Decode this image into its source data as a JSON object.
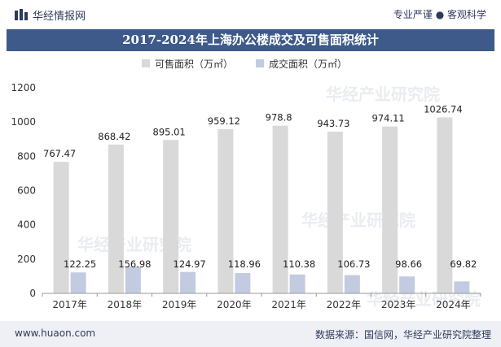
{
  "header": {
    "brand": "华经情报网",
    "tagline": "专业严谨 ● 客观科学"
  },
  "title": "2017-2024年上海办公楼成交及可售面积统计",
  "watermark": "华经产业研究院",
  "chart_data": {
    "type": "bar",
    "title": "2017-2024年上海办公楼成交及可售面积统计",
    "categories": [
      "2017年",
      "2018年",
      "2019年",
      "2020年",
      "2021年",
      "2022年",
      "2023年",
      "2024年"
    ],
    "series": [
      {
        "name": "可售面积（万㎡）",
        "values": [
          767.47,
          868.42,
          895.01,
          959.12,
          978.8,
          943.73,
          974.11,
          1026.74
        ],
        "color": "#d9d9d9"
      },
      {
        "name": "成交面积（万㎡）",
        "values": [
          122.25,
          156.98,
          124.97,
          118.96,
          110.38,
          106.73,
          98.66,
          69.82
        ],
        "color": "#c3cbe0"
      }
    ],
    "ylim": [
      0,
      1200
    ],
    "yticks": [
      0,
      200,
      400,
      600,
      800,
      1000,
      1200
    ],
    "legend_position": "top",
    "xlabel": "",
    "ylabel": ""
  },
  "footer": {
    "url": "www.huaon.com",
    "source": "数据来源：国信网，华经产业研究院整理"
  }
}
